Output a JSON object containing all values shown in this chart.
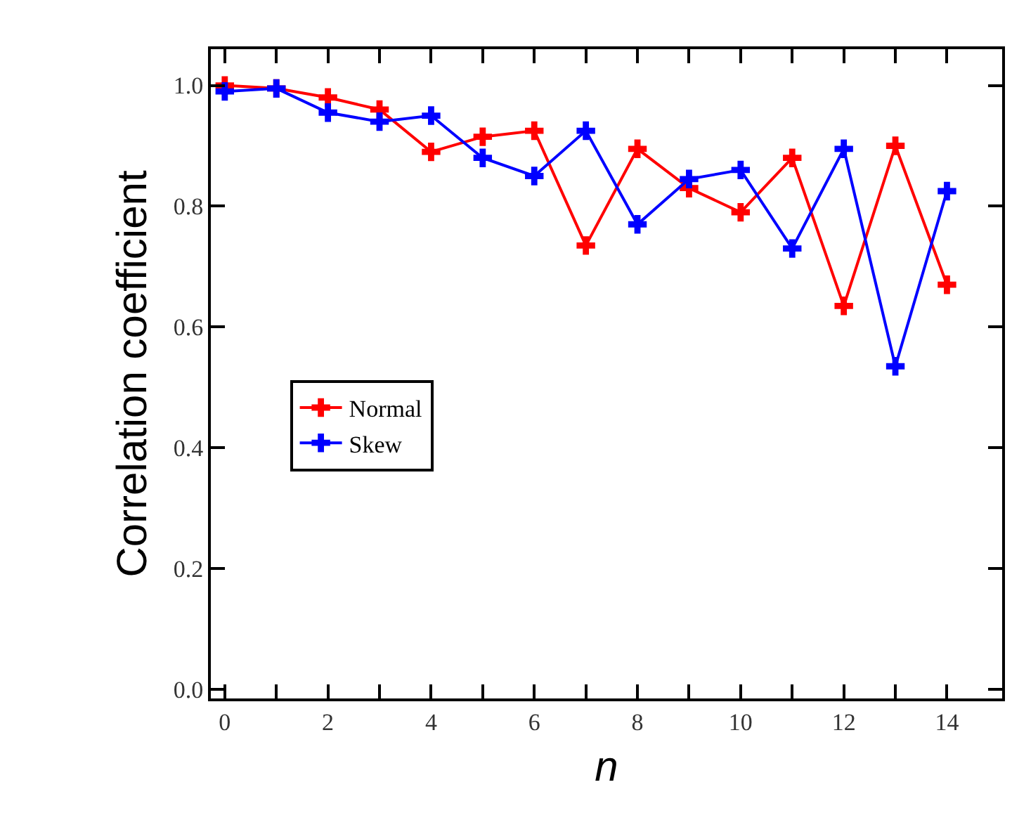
{
  "chart_data": {
    "type": "line",
    "xlabel": "n",
    "ylabel": "Correlation coefficient",
    "x": [
      0,
      1,
      2,
      3,
      4,
      5,
      6,
      7,
      8,
      9,
      10,
      11,
      12,
      13,
      14
    ],
    "series": [
      {
        "name": "Normal",
        "color": "#ff0000",
        "values": [
          1.0,
          0.995,
          0.98,
          0.96,
          0.89,
          0.915,
          0.925,
          0.735,
          0.895,
          0.83,
          0.79,
          0.88,
          0.635,
          0.9,
          0.67
        ]
      },
      {
        "name": "Skew",
        "color": "#0000ff",
        "values": [
          0.99,
          0.995,
          0.955,
          0.94,
          0.95,
          0.88,
          0.85,
          0.925,
          0.77,
          0.845,
          0.86,
          0.73,
          0.895,
          0.535,
          0.825
        ]
      }
    ],
    "xlim": [
      -0.27,
      15.07
    ],
    "xticks": [
      0,
      {
        "value": 1,
        "label": null
      },
      2,
      {
        "value": 3,
        "label": null
      },
      4,
      {
        "value": 5,
        "label": null
      },
      6,
      {
        "value": 7,
        "label": null
      },
      8,
      {
        "value": 9,
        "label": null
      },
      10,
      {
        "value": 11,
        "label": null
      },
      12,
      {
        "value": 13,
        "label": null
      },
      14
    ],
    "ylim": [
      -0.015,
      1.06
    ],
    "yticks": [
      {
        "value": 0,
        "label": "0.0"
      },
      0.2,
      0.4,
      0.6,
      0.8,
      {
        "value": 1,
        "label": "1.0"
      }
    ],
    "marker": "cross",
    "line_style": "solid",
    "legend": "left"
  }
}
